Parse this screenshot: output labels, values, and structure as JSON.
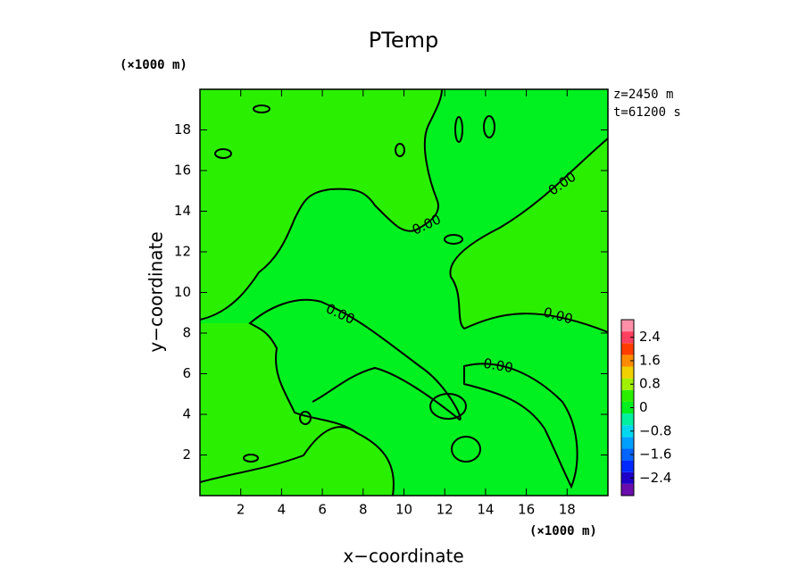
{
  "chart_data": {
    "type": "contour",
    "title": "PTemp",
    "xlabel": "x−coordinate",
    "ylabel": "y−coordinate",
    "xunit": "(×1000 m)",
    "yunit": "(×1000 m)",
    "annotations": [
      "z=2450 m",
      "t=61200 s"
    ],
    "contour_label": "0.00",
    "xlim": [
      0,
      20
    ],
    "ylim": [
      0,
      20
    ],
    "xticks": [
      2,
      4,
      6,
      8,
      10,
      12,
      14,
      16,
      18
    ],
    "yticks": [
      2,
      4,
      6,
      8,
      10,
      12,
      14,
      16,
      18
    ],
    "colorbar": {
      "lim": [
        -3,
        3
      ],
      "levels": [
        -3,
        -2.6,
        -2.2,
        -1.8,
        -1.4,
        -1,
        -0.6,
        -0.2,
        0.2,
        0.6,
        1,
        1.4,
        1.8,
        2.2,
        2.6,
        3
      ],
      "colors": [
        "#6a0dad",
        "#1e00c8",
        "#0028ff",
        "#0064ff",
        "#00a0ff",
        "#00d8f0",
        "#00f0a0",
        "#00f020",
        "#2af000",
        "#a0f000",
        "#f0d000",
        "#ff8c00",
        "#ff3c00",
        "#ff4060",
        "#ff90a8"
      ],
      "ticks": [
        {
          "value": -2.4,
          "label": "−2.4"
        },
        {
          "value": -1.6,
          "label": "−1.6"
        },
        {
          "value": -0.8,
          "label": "−0.8"
        },
        0,
        0.8,
        1.6,
        2.4
      ]
    }
  }
}
